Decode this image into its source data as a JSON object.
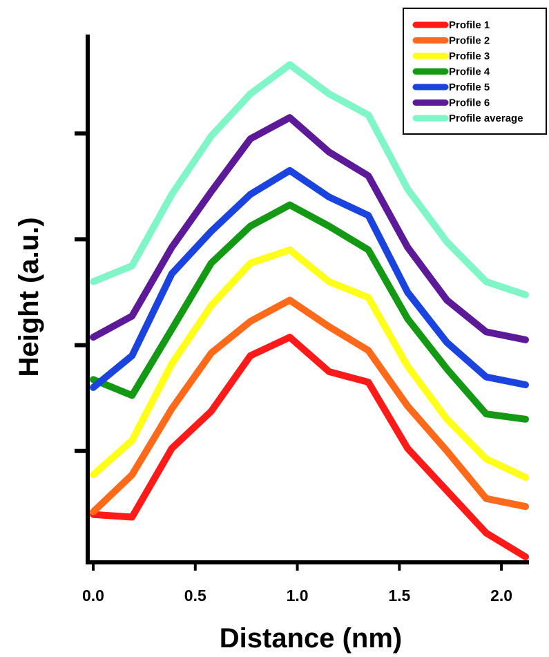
{
  "chart_data": {
    "type": "line",
    "title": "",
    "xlabel": "Distance (nm)",
    "ylabel": "Height (a.u.)",
    "xlim": [
      -0.02,
      2.14
    ],
    "ylim": [
      0,
      10
    ],
    "x_ticks": [
      0.0,
      0.5,
      1.0,
      1.5,
      2.0
    ],
    "x_tick_labels": [
      "0.0",
      "0.5",
      "1.0",
      "1.5",
      "2.0"
    ],
    "y_ticks": [
      2,
      4,
      6,
      8
    ],
    "y_tick_labels": [
      "",
      "",
      "",
      ""
    ],
    "legend_position": "top-right",
    "x": [
      0.0,
      0.19,
      0.385,
      0.578,
      0.77,
      0.963,
      1.155,
      1.348,
      1.54,
      1.733,
      1.925,
      2.118
    ],
    "series": [
      {
        "name": "Profile 1",
        "color": "#ff1a1a",
        "values": [
          0.8,
          0.75,
          2.05,
          2.75,
          3.8,
          4.15,
          3.5,
          3.3,
          2.05,
          1.25,
          0.45,
          0.0
        ]
      },
      {
        "name": "Profile 2",
        "color": "#ff6a1a",
        "values": [
          0.85,
          1.55,
          2.8,
          3.85,
          4.45,
          4.85,
          4.35,
          3.9,
          2.85,
          2.0,
          1.1,
          0.95
        ]
      },
      {
        "name": "Profile 3",
        "color": "#ffff1a",
        "values": [
          1.55,
          2.2,
          3.65,
          4.75,
          5.55,
          5.8,
          5.2,
          4.9,
          3.6,
          2.6,
          1.85,
          1.5
        ]
      },
      {
        "name": "Profile 4",
        "color": "#149914",
        "values": [
          3.35,
          3.05,
          4.3,
          5.55,
          6.25,
          6.65,
          6.25,
          5.8,
          4.5,
          3.55,
          2.7,
          2.6
        ]
      },
      {
        "name": "Profile 5",
        "color": "#1a44dd",
        "values": [
          3.2,
          3.8,
          5.35,
          6.15,
          6.85,
          7.3,
          6.8,
          6.45,
          5.0,
          4.05,
          3.4,
          3.25
        ]
      },
      {
        "name": "Profile 6",
        "color": "#5c1a99",
        "values": [
          4.15,
          4.55,
          5.85,
          6.9,
          7.9,
          8.3,
          7.65,
          7.2,
          5.85,
          4.85,
          4.25,
          4.1
        ]
      },
      {
        "name": "Profile average",
        "color": "#7ff5c8",
        "values": [
          5.2,
          5.5,
          6.85,
          7.95,
          8.75,
          9.3,
          8.75,
          8.35,
          6.95,
          5.95,
          5.2,
          4.95
        ]
      }
    ]
  }
}
